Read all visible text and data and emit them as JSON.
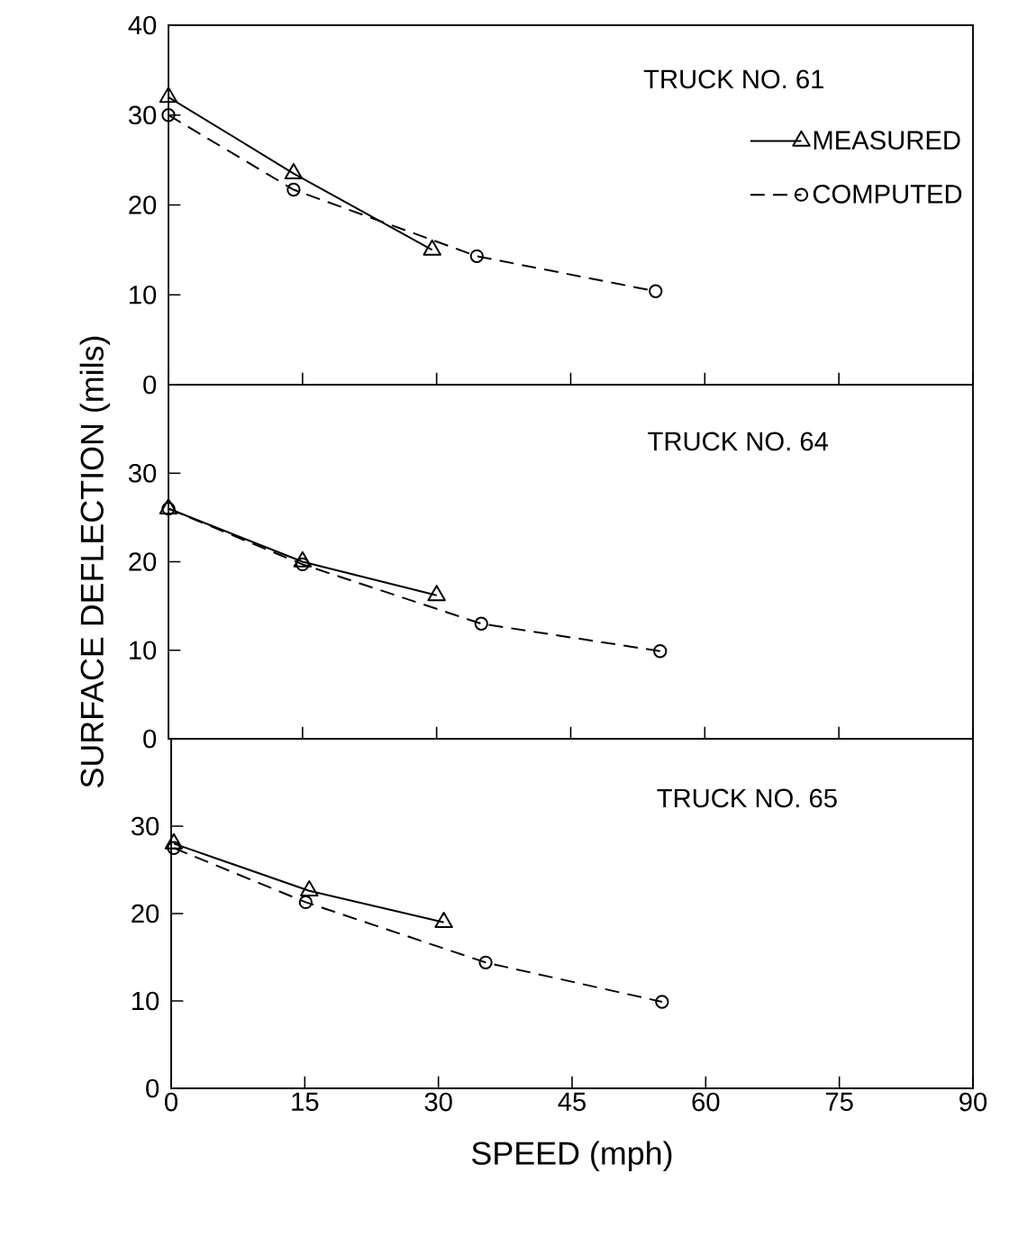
{
  "chart_data": [
    {
      "type": "line",
      "title": "TRUCK NO. 61",
      "xlim": [
        0,
        90
      ],
      "xticks": [
        0,
        15,
        30,
        45,
        60,
        75,
        90
      ],
      "ylim": [
        0,
        40
      ],
      "yticks": [
        0,
        10,
        20,
        30,
        40
      ],
      "tick_labels": "y",
      "legend": "top right",
      "series": [
        {
          "name": "MEASURED",
          "color": "#000000",
          "x": [
            0,
            14,
            29.5
          ],
          "values": [
            32,
            23.5,
            15
          ],
          "marker": "triangle",
          "line_style": "solid"
        },
        {
          "name": "COMPUTED",
          "color": "#000000",
          "x": [
            0,
            14,
            34.5,
            54.5
          ],
          "values": [
            30,
            21.7,
            14.3,
            10.4
          ],
          "marker": "circle",
          "line_style": "dashed"
        }
      ]
    },
    {
      "type": "line",
      "title": "TRUCK NO. 64",
      "ylabel": "SURFACE DEFLECTION (mils)",
      "xlim": [
        0,
        90
      ],
      "xticks": [
        0,
        15,
        30,
        45,
        60,
        75,
        90
      ],
      "ylim": [
        0,
        40
      ],
      "yticks": [
        0,
        10,
        20,
        30
      ],
      "tick_labels": "y",
      "series": [
        {
          "color": "#000000",
          "x": [
            0,
            15,
            35,
            55
          ],
          "values": [
            26,
            19.7,
            13,
            9.9
          ],
          "marker": "circle",
          "line_style": "dashed"
        },
        {
          "color": "#000000",
          "x": [
            0,
            15,
            30
          ],
          "values": [
            26,
            20,
            16.2
          ],
          "marker": "triangle",
          "line_style": "solid"
        }
      ]
    },
    {
      "type": "line",
      "title": "TRUCK NO. 65",
      "xlabel": "SPEED (mph)",
      "xlim": [
        0,
        90
      ],
      "xticks": [
        0,
        15,
        30,
        45,
        60,
        75,
        90
      ],
      "ylim": [
        0,
        40
      ],
      "yticks": [
        0,
        10,
        20,
        30
      ],
      "series": [
        {
          "color": "#000000",
          "x": [
            0.3,
            15.5,
            30.6
          ],
          "values": [
            28,
            22.6,
            19
          ],
          "marker": "triangle",
          "line_style": "solid"
        },
        {
          "color": "#000000",
          "x": [
            0.3,
            15.1,
            35.3,
            55.1
          ],
          "values": [
            27.5,
            21.3,
            14.4,
            9.9
          ],
          "marker": "circle",
          "line_style": "dashed"
        }
      ]
    }
  ]
}
